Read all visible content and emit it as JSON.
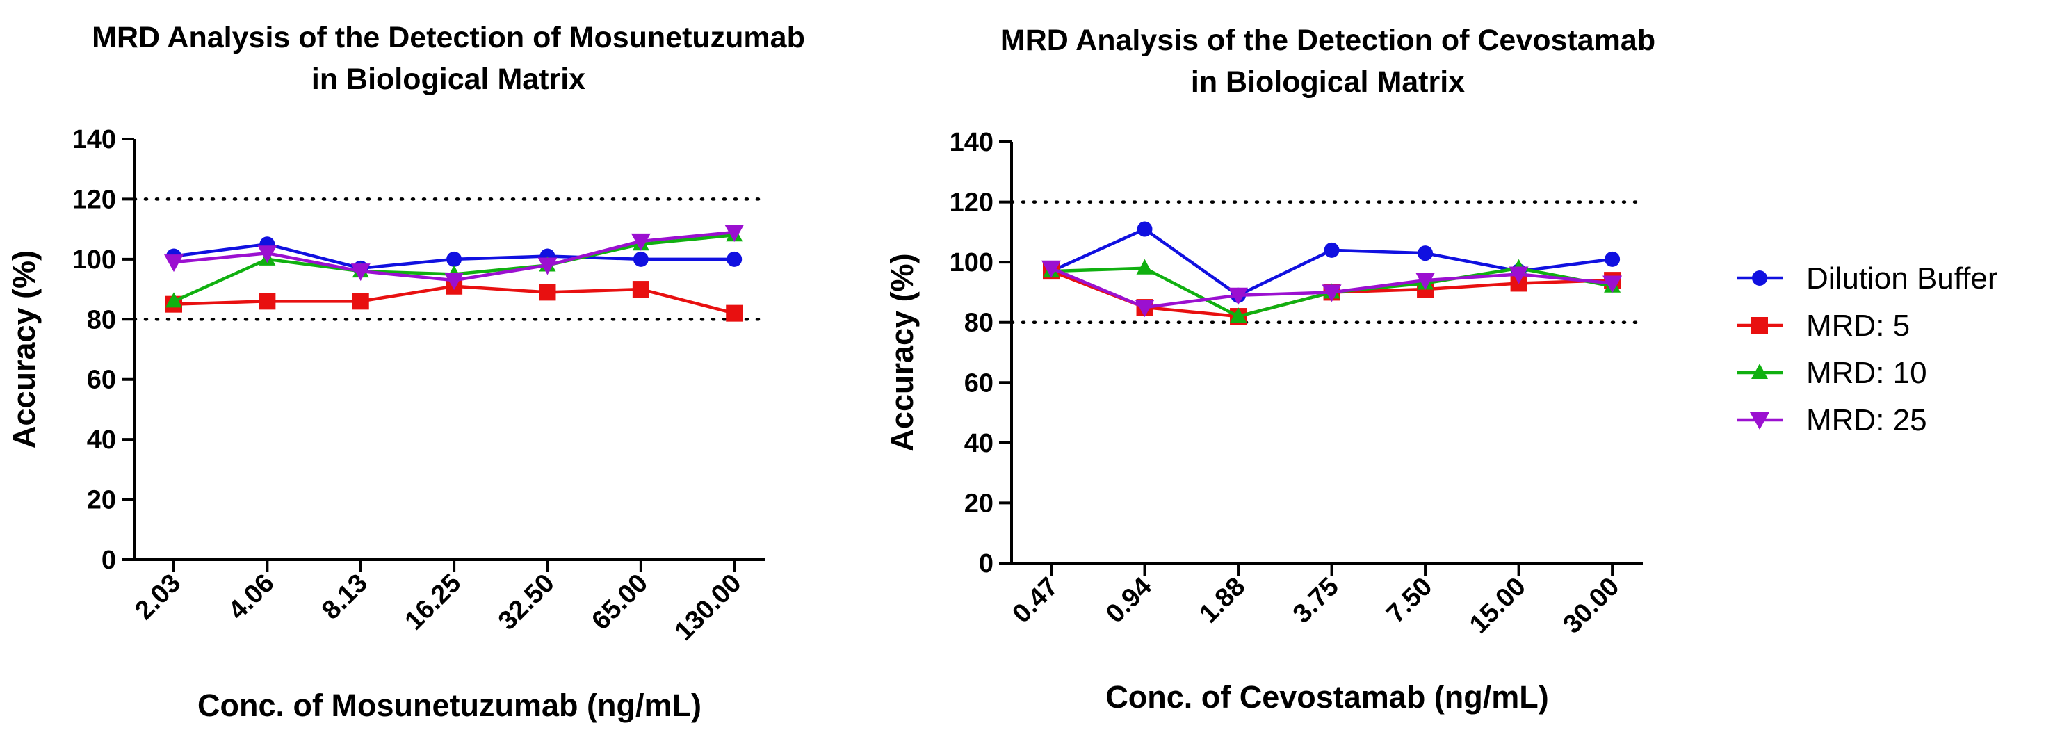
{
  "chart_data": [
    {
      "type": "line",
      "title": [
        "MRD Analysis of the Detection of Mosunetuzumab",
        "in Biological Matrix"
      ],
      "xlabel": "Conc. of Mosunetuzumab (ng/mL)",
      "ylabel": "Accuracy (%)",
      "categories": [
        "2.03",
        "4.06",
        "8.13",
        "16.25",
        "32.50",
        "65.00",
        "130.00"
      ],
      "ylim": [
        0,
        140
      ],
      "yticks": [
        "0",
        "20",
        "40",
        "60",
        "80",
        "100",
        "120",
        "140"
      ],
      "reference_lines": [
        80,
        120
      ],
      "series": [
        {
          "name": "Dilution Buffer",
          "values": [
            101,
            105,
            97,
            100,
            101,
            100,
            100
          ]
        },
        {
          "name": "MRD: 5",
          "values": [
            85,
            86,
            86,
            91,
            89,
            90,
            82
          ]
        },
        {
          "name": "MRD: 10",
          "values": [
            86,
            100,
            96,
            95,
            98,
            105,
            108
          ]
        },
        {
          "name": "MRD: 25",
          "values": [
            99,
            102,
            96,
            93,
            98,
            106,
            109
          ]
        }
      ]
    },
    {
      "type": "line",
      "title": [
        "MRD Analysis of the Detection of Cevostamab",
        "in Biological Matrix"
      ],
      "xlabel": "Conc. of Cevostamab (ng/mL)",
      "ylabel": "Accuracy (%)",
      "categories": [
        "0.47",
        "0.94",
        "1.88",
        "3.75",
        "7.50",
        "15.00",
        "30.00"
      ],
      "ylim": [
        0,
        140
      ],
      "yticks": [
        "0",
        "20",
        "40",
        "60",
        "80",
        "100",
        "120",
        "140"
      ],
      "reference_lines": [
        80,
        120
      ],
      "series": [
        {
          "name": "Dilution Buffer",
          "values": [
            97,
            111,
            89,
            104,
            103,
            97,
            101
          ]
        },
        {
          "name": "MRD: 5",
          "values": [
            97,
            85,
            82,
            90,
            91,
            93,
            94
          ]
        },
        {
          "name": "MRD: 10",
          "values": [
            97,
            98,
            82,
            90,
            93,
            98,
            92
          ]
        },
        {
          "name": "MRD: 25",
          "values": [
            98,
            85,
            89,
            90,
            94,
            96,
            93
          ]
        }
      ]
    }
  ],
  "legend": {
    "placement": "right",
    "entries": [
      {
        "name": "Dilution Buffer",
        "color": "#1010e0",
        "marker": "circle"
      },
      {
        "name": "MRD: 5",
        "color": "#e81010",
        "marker": "square"
      },
      {
        "name": "MRD: 10",
        "color": "#10b010",
        "marker": "triangle-up"
      },
      {
        "name": "MRD: 25",
        "color": "#9b10d0",
        "marker": "triangle-down"
      }
    ]
  }
}
